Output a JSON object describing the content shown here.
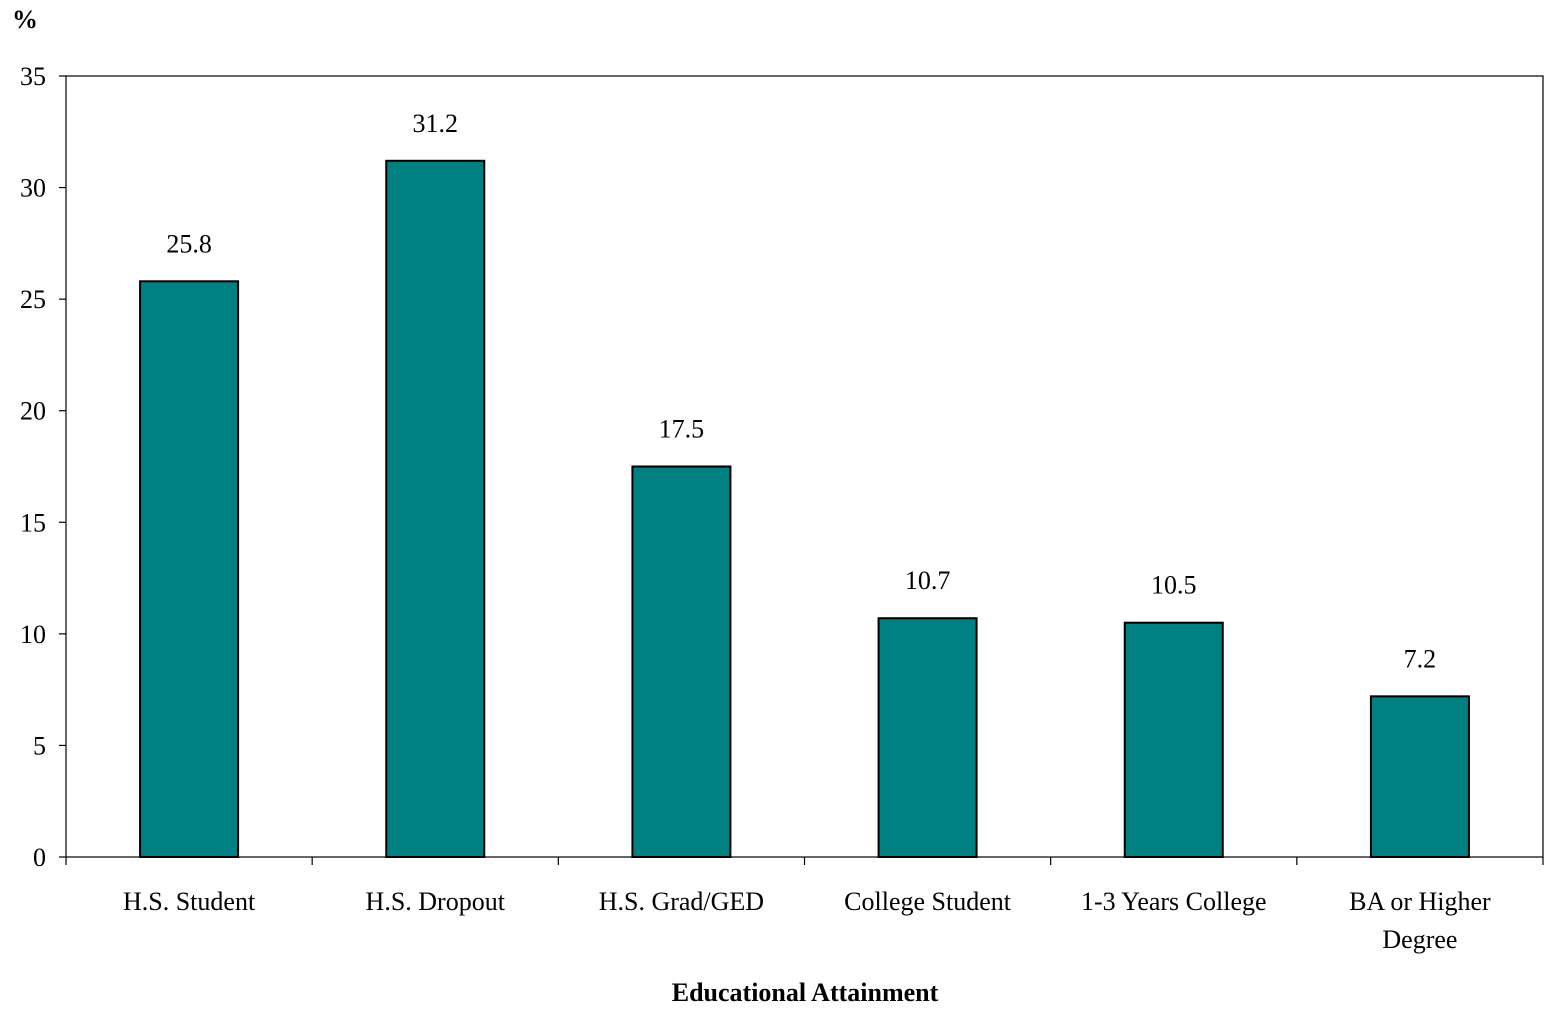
{
  "chart_data": {
    "type": "bar",
    "title": "",
    "xlabel": "Educational Attainment",
    "ylabel": "%",
    "categories": [
      [
        "H.S. Student"
      ],
      [
        "H.S. Dropout"
      ],
      [
        "H.S. Grad/GED"
      ],
      [
        "College Student"
      ],
      [
        "1-3 Years College"
      ],
      [
        "BA or Higher",
        "Degree"
      ]
    ],
    "values": [
      25.8,
      31.2,
      17.5,
      10.7,
      10.5,
      7.2
    ],
    "value_labels": [
      "25.8",
      "31.2",
      "17.5",
      "10.7",
      "10.5",
      "7.2"
    ],
    "ylim": [
      0,
      35
    ],
    "yticks": [
      0,
      5,
      10,
      15,
      20,
      25,
      30,
      35
    ],
    "grid": false,
    "legend": "none",
    "colors": {
      "bar_fill": "#008080",
      "bar_stroke": "#000000",
      "axis": "#000000"
    }
  }
}
